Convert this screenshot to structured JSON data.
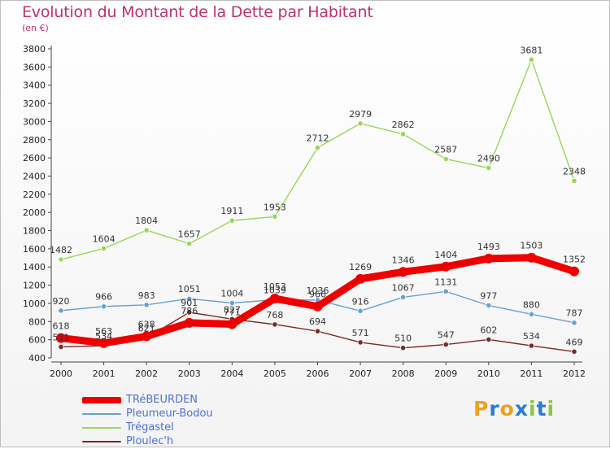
{
  "title": "Evolution du Montant de la Dette par Habitant",
  "subtitle": "(en €)",
  "logo": {
    "text": "Proxiti",
    "letters": [
      "P",
      "r",
      "o",
      "x",
      "i",
      "t",
      "i"
    ],
    "colors": [
      "#f0a020",
      "#2a7bd6",
      "#f0a020",
      "#2a7bd6",
      "#8cc63f",
      "#2a7bd6",
      "#8cc63f"
    ]
  },
  "chart_data": {
    "type": "line",
    "x": [
      "2000",
      "2001",
      "2002",
      "2003",
      "2004",
      "2005",
      "2006",
      "2007",
      "2008",
      "2009",
      "2010",
      "2011",
      "2012"
    ],
    "ylim": [
      400,
      3800
    ],
    "yticks": [
      400,
      600,
      800,
      1000,
      1200,
      1400,
      1600,
      1800,
      2000,
      2200,
      2400,
      2600,
      2800,
      3000,
      3200,
      3400,
      3600,
      3800
    ],
    "grid": false,
    "legend_position": "bottom-left",
    "series": [
      {
        "name": "TRéBEURDEN",
        "color": "#ee0000",
        "values": [
          618,
          563,
          638,
          786,
          771,
          1053,
          966,
          1269,
          1346,
          1404,
          1493,
          1503,
          1352
        ]
      },
      {
        "name": "Pleumeur-Bodou",
        "color": "#6a9fd4",
        "values": [
          920,
          966,
          983,
          1051,
          1004,
          1039,
          1036,
          916,
          1067,
          1131,
          977,
          880,
          787
        ]
      },
      {
        "name": "Trégastel",
        "color": "#99d65a",
        "values": [
          1482,
          1604,
          1804,
          1657,
          1911,
          1953,
          2712,
          2979,
          2862,
          2587,
          2490,
          3681,
          2348
        ]
      },
      {
        "name": "Ploulec'h",
        "color": "#7a2a2a",
        "values": [
          521,
          534,
          621,
          901,
          827,
          768,
          694,
          571,
          510,
          547,
          602,
          534,
          469
        ]
      }
    ]
  }
}
